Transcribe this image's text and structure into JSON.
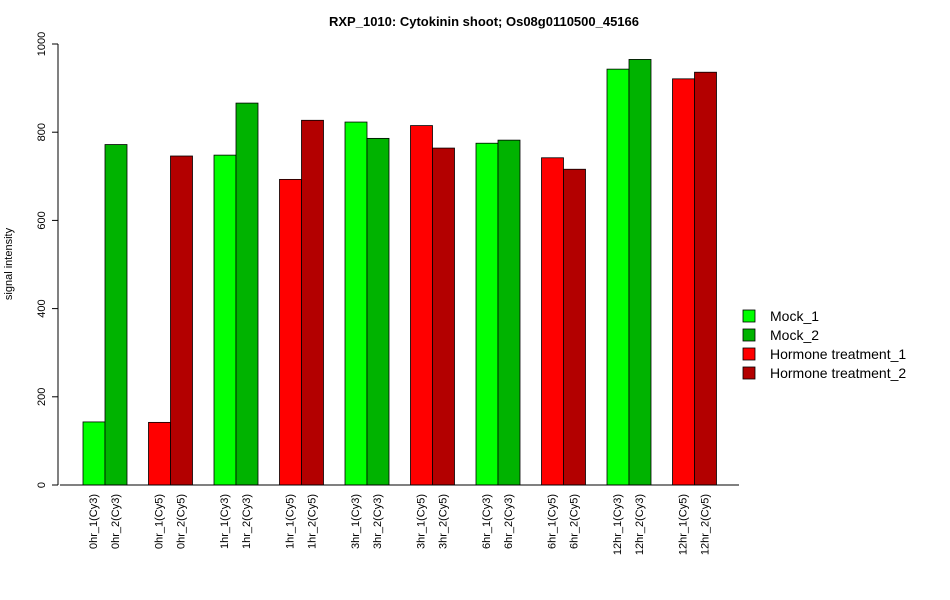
{
  "chart_data": {
    "type": "bar",
    "title": "RXP_1010: Cytokinin shoot; Os08g0110500_45166",
    "xlabel": "",
    "ylabel": "signal intensity",
    "ylim": [
      0,
      1000
    ],
    "yticks": [
      0,
      200,
      400,
      600,
      800,
      1000
    ],
    "grid": false,
    "legend_position": "right",
    "legend": [
      {
        "name": "Mock_1",
        "color": "#00ff00"
      },
      {
        "name": "Mock_2",
        "color": "#00b300"
      },
      {
        "name": "Hormone treatment_1",
        "color": "#ff0000"
      },
      {
        "name": "Hormone treatment_2",
        "color": "#b30000"
      }
    ],
    "bars": [
      {
        "label": "0hr_1(Cy3)",
        "value": 143,
        "color": "#00ff00"
      },
      {
        "label": "0hr_2(Cy3)",
        "value": 772,
        "color": "#00b300"
      },
      {
        "label": "0hr_1(Cy5)",
        "value": 142,
        "color": "#ff0000"
      },
      {
        "label": "0hr_2(Cy5)",
        "value": 746,
        "color": "#b30000"
      },
      {
        "label": "1hr_1(Cy3)",
        "value": 748,
        "color": "#00ff00"
      },
      {
        "label": "1hr_2(Cy3)",
        "value": 866,
        "color": "#00b300"
      },
      {
        "label": "1hr_1(Cy5)",
        "value": 693,
        "color": "#ff0000"
      },
      {
        "label": "1hr_2(Cy5)",
        "value": 827,
        "color": "#b30000"
      },
      {
        "label": "3hr_1(Cy3)",
        "value": 823,
        "color": "#00ff00"
      },
      {
        "label": "3hr_2(Cy3)",
        "value": 786,
        "color": "#00b300"
      },
      {
        "label": "3hr_1(Cy5)",
        "value": 815,
        "color": "#ff0000"
      },
      {
        "label": "3hr_2(Cy5)",
        "value": 764,
        "color": "#b30000"
      },
      {
        "label": "6hr_1(Cy3)",
        "value": 775,
        "color": "#00ff00"
      },
      {
        "label": "6hr_2(Cy3)",
        "value": 782,
        "color": "#00b300"
      },
      {
        "label": "6hr_1(Cy5)",
        "value": 742,
        "color": "#ff0000"
      },
      {
        "label": "6hr_2(Cy5)",
        "value": 716,
        "color": "#b30000"
      },
      {
        "label": "12hr_1(Cy3)",
        "value": 943,
        "color": "#00ff00"
      },
      {
        "label": "12hr_2(Cy3)",
        "value": 965,
        "color": "#00b300"
      },
      {
        "label": "12hr_1(Cy5)",
        "value": 921,
        "color": "#ff0000"
      },
      {
        "label": "12hr_2(Cy5)",
        "value": 936,
        "color": "#b30000"
      }
    ]
  }
}
